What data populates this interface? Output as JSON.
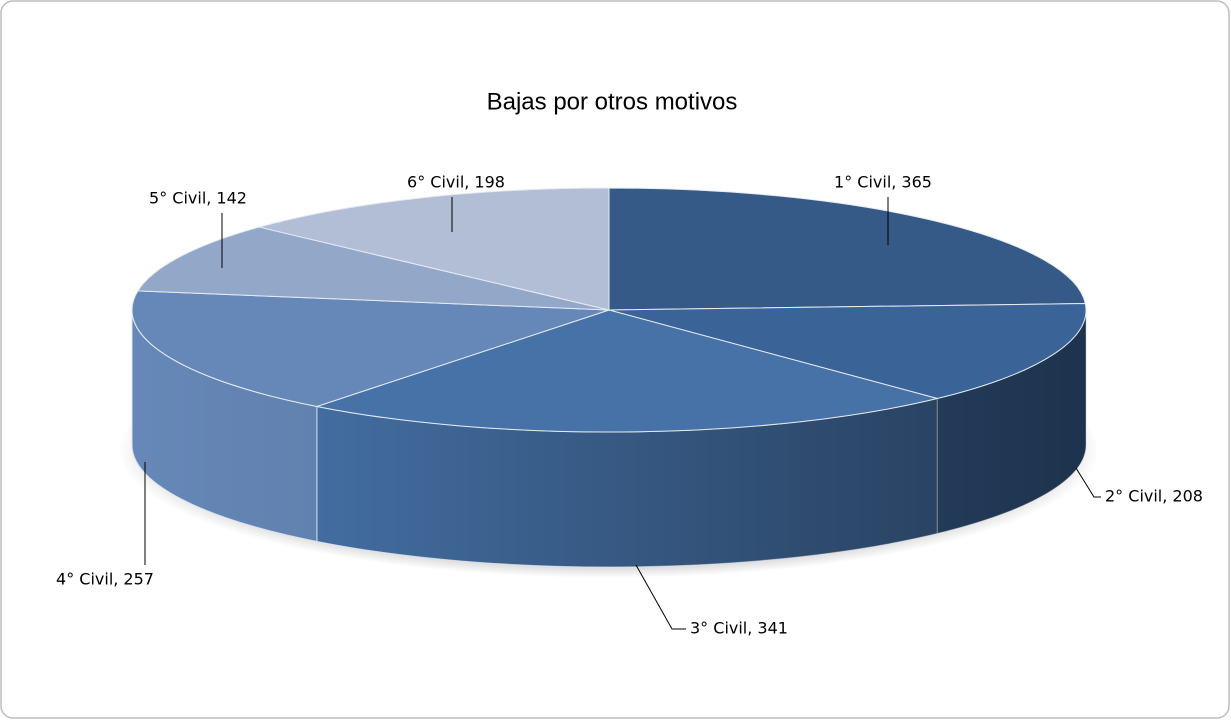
{
  "chart_data": {
    "type": "pie",
    "title": "Bajas por otros motivos",
    "categories": [
      "1° Civil",
      "2° Civil",
      "3° Civil",
      "4° Civil",
      "5° Civil",
      "6° Civil"
    ],
    "values": [
      365,
      208,
      341,
      257,
      142,
      198
    ],
    "value_labels": [
      "1° Civil, 365",
      "2° Civil, 208",
      "3° Civil, 341",
      "4° Civil, 257",
      "5° Civil, 142",
      "6° Civil, 198"
    ],
    "colors": [
      "#355a87",
      "#3a6498",
      "#4672a8",
      "#6688b8",
      "#93a8c9",
      "#b1bed6"
    ]
  }
}
